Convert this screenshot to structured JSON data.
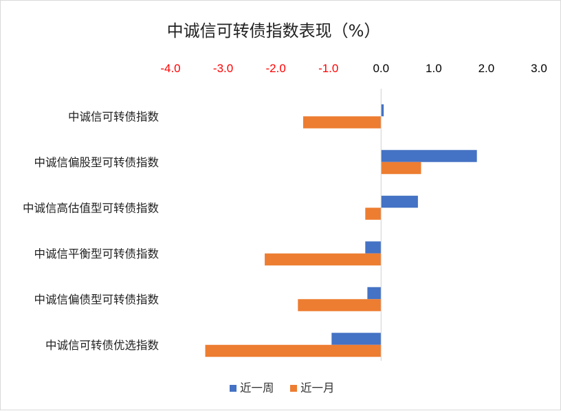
{
  "chart_data": {
    "type": "bar",
    "orientation": "horizontal",
    "title": "中诚信可转债指数表现（%）",
    "categories": [
      "中诚信可转债指数",
      "中诚信偏股型可转债指数",
      "中诚信高估值型可转债指数",
      "中诚信平衡型可转债指数",
      "中诚信偏债型可转债指数",
      "中诚信可转债优选指数"
    ],
    "series": [
      {
        "name": "近一周",
        "color": "#4472C4",
        "values": [
          0.05,
          1.82,
          0.7,
          -0.3,
          -0.26,
          -0.94
        ]
      },
      {
        "name": "近一月",
        "color": "#ED7D31",
        "values": [
          -1.48,
          0.76,
          -0.3,
          -2.21,
          -1.58,
          -3.34
        ]
      }
    ],
    "xlim": [
      -4.0,
      3.0
    ],
    "x_ticks": [
      "-4.0",
      "-3.0",
      "-2.0",
      "-1.0",
      "0.0",
      "1.0",
      "2.0",
      "3.0"
    ],
    "x_tick_colors": {
      "negative": "#FF0000",
      "nonnegative": "#000000"
    },
    "x_axis_position": "top",
    "grid": false,
    "legend_position": "bottom"
  }
}
